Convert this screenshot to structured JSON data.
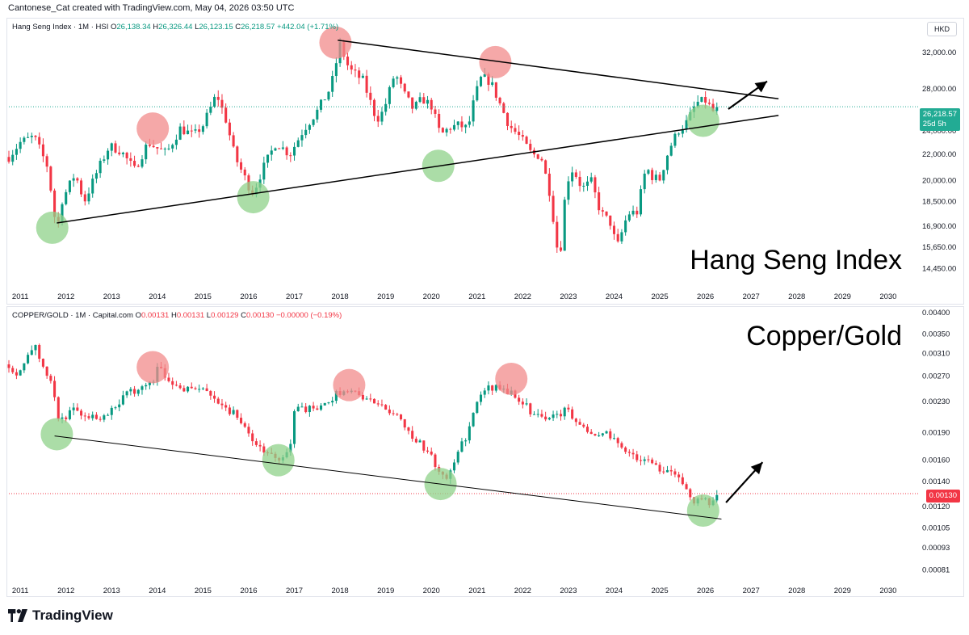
{
  "header": {
    "caption": "Cantonese_Cat created with TradingView.com, May 04, 2026 03:50 UTC"
  },
  "footer": {
    "brand": "TradingView"
  },
  "colors": {
    "up": "#089981",
    "down": "#f23645",
    "green_circle": "#8fd18a",
    "red_circle": "#f28b8b",
    "last_price_line": "#22ab94"
  },
  "chart_data": [
    {
      "type": "candlestick",
      "symbol_line": "Hang Seng Index · 1M · HSI",
      "ohlc": {
        "O": "26,138.34",
        "H": "26,326.44",
        "L": "26,123.15",
        "C": "26,218.57",
        "change": "+442.04 (+1.71%)"
      },
      "big_label": "Hang Seng Index",
      "currency": "HKD",
      "y_ticks": [
        "32,000.00",
        "28,000.00",
        "24,000.00",
        "22,000.00",
        "20,000.00",
        "18,500.00",
        "16,900.00",
        "15,650.00",
        "14,450.00"
      ],
      "y_tick_values": [
        32000,
        28000,
        24000,
        22000,
        20000,
        18500,
        16900,
        15650,
        14450
      ],
      "y_scale": "log",
      "ylim": [
        13600,
        35000
      ],
      "last_price": {
        "label": "26,218.57",
        "sub": "25d 5h",
        "value": 26218.57
      },
      "x_ticks": [
        "2011",
        "2012",
        "2013",
        "2014",
        "2015",
        "2016",
        "2017",
        "2018",
        "2019",
        "2020",
        "2021",
        "2022",
        "2023",
        "2024",
        "2025",
        "2026",
        "2027",
        "2028",
        "2029",
        "2030"
      ],
      "xlim": [
        2010.75,
        2030.55
      ],
      "series": [
        {
          "points": [
            [
              2010.75,
              21800
            ],
            [
              2011.0,
              23000
            ],
            [
              2011.3,
              23500
            ],
            [
              2011.6,
              21000
            ],
            [
              2011.8,
              16500
            ],
            [
              2011.9,
              18500
            ],
            [
              2012.2,
              20500
            ],
            [
              2012.4,
              18500
            ],
            [
              2012.7,
              20800
            ],
            [
              2012.95,
              22700
            ],
            [
              2013.2,
              22300
            ],
            [
              2013.5,
              20800
            ],
            [
              2013.8,
              23000
            ],
            [
              2014.0,
              22500
            ],
            [
              2014.2,
              22100
            ],
            [
              2014.5,
              24200
            ],
            [
              2014.8,
              23600
            ],
            [
              2015.0,
              24500
            ],
            [
              2015.3,
              27500
            ],
            [
              2015.5,
              25000
            ],
            [
              2015.7,
              21800
            ],
            [
              2016.0,
              19600
            ],
            [
              2016.1,
              19100
            ],
            [
              2016.3,
              20800
            ],
            [
              2016.6,
              23000
            ],
            [
              2016.9,
              22000
            ],
            [
              2017.2,
              24100
            ],
            [
              2017.5,
              25800
            ],
            [
              2017.8,
              28200
            ],
            [
              2018.0,
              32900
            ],
            [
              2018.2,
              30100
            ],
            [
              2018.5,
              28900
            ],
            [
              2018.8,
              25000
            ],
            [
              2018.95,
              25800
            ],
            [
              2019.2,
              29700
            ],
            [
              2019.4,
              27500
            ],
            [
              2019.6,
              26000
            ],
            [
              2019.8,
              27000
            ],
            [
              2020.0,
              26300
            ],
            [
              2020.2,
              23600
            ],
            [
              2020.4,
              24300
            ],
            [
              2020.6,
              24500
            ],
            [
              2020.8,
              24200
            ],
            [
              2020.95,
              27200
            ],
            [
              2021.1,
              29300
            ],
            [
              2021.3,
              28700
            ],
            [
              2021.5,
              26500
            ],
            [
              2021.7,
              24500
            ],
            [
              2021.95,
              23400
            ],
            [
              2022.2,
              22000
            ],
            [
              2022.4,
              21900
            ],
            [
              2022.6,
              19000
            ],
            [
              2022.8,
              14700
            ],
            [
              2022.95,
              19800
            ],
            [
              2023.1,
              20900
            ],
            [
              2023.3,
              19400
            ],
            [
              2023.5,
              19900
            ],
            [
              2023.7,
              17800
            ],
            [
              2023.95,
              17000
            ],
            [
              2024.05,
              15500
            ],
            [
              2024.3,
              17700
            ],
            [
              2024.5,
              17800
            ],
            [
              2024.7,
              21000
            ],
            [
              2024.85,
              20200
            ],
            [
              2025.0,
              20100
            ],
            [
              2025.2,
              22400
            ],
            [
              2025.4,
              24000
            ],
            [
              2025.6,
              24800
            ],
            [
              2025.8,
              26600
            ],
            [
              2026.0,
              26800
            ],
            [
              2026.2,
              25600
            ],
            [
              2026.3,
              26219
            ]
          ]
        }
      ],
      "trendlines": [
        {
          "from": [
            2011.8,
            17100
          ],
          "to": [
            2027.6,
            25400
          ]
        },
        {
          "from": [
            2017.95,
            33500
          ],
          "to": [
            2027.6,
            27000
          ]
        }
      ],
      "arrow": {
        "from": [
          2026.5,
          26000
        ],
        "to": [
          2027.35,
          28800
        ]
      },
      "circles": [
        {
          "color": "green",
          "at": [
            2011.7,
            16800
          ]
        },
        {
          "color": "red",
          "at": [
            2013.9,
            24200
          ]
        },
        {
          "color": "green",
          "at": [
            2016.1,
            18800
          ]
        },
        {
          "color": "red",
          "at": [
            2017.9,
            33200
          ]
        },
        {
          "color": "green",
          "at": [
            2020.15,
            21100
          ]
        },
        {
          "color": "red",
          "at": [
            2021.4,
            30900
          ]
        },
        {
          "color": "green",
          "at": [
            2025.95,
            24900
          ]
        }
      ]
    },
    {
      "type": "candlestick",
      "symbol_line": "COPPER/GOLD · 1M · Capital.com",
      "ohlc": {
        "O": "0.00131",
        "H": "0.00131",
        "L": "0.00129",
        "C": "0.00130",
        "change": "−0.00000 (−0.19%)"
      },
      "big_label": "Copper/Gold",
      "y_ticks": [
        "0.00400",
        "0.00350",
        "0.00310",
        "0.00270",
        "0.00230",
        "0.00190",
        "0.00160",
        "0.00140",
        "0.00120",
        "0.00105",
        "0.00093",
        "0.00081"
      ],
      "y_tick_values": [
        0.004,
        0.0035,
        0.0031,
        0.0027,
        0.0023,
        0.0019,
        0.0016,
        0.0014,
        0.0012,
        0.00105,
        0.00093,
        0.00081
      ],
      "y_scale": "log",
      "ylim": [
        0.00076,
        0.0041
      ],
      "last_price": {
        "label": "0.00130",
        "value": 0.0013
      },
      "x_ticks": [
        "2011",
        "2012",
        "2013",
        "2014",
        "2015",
        "2016",
        "2017",
        "2018",
        "2019",
        "2020",
        "2021",
        "2022",
        "2023",
        "2024",
        "2025",
        "2026",
        "2027",
        "2028",
        "2029",
        "2030"
      ],
      "xlim": [
        2010.75,
        2030.55
      ],
      "series": [
        {
          "points": [
            [
              2010.75,
              0.0029
            ],
            [
              2010.9,
              0.0027
            ],
            [
              2011.1,
              0.003
            ],
            [
              2011.3,
              0.0033
            ],
            [
              2011.5,
              0.0028
            ],
            [
              2011.7,
              0.0026
            ],
            [
              2011.85,
              0.002
            ],
            [
              2012.0,
              0.0021
            ],
            [
              2012.2,
              0.0022
            ],
            [
              2012.5,
              0.0021
            ],
            [
              2012.8,
              0.0021
            ],
            [
              2013.0,
              0.0022
            ],
            [
              2013.3,
              0.0024
            ],
            [
              2013.6,
              0.0025
            ],
            [
              2013.9,
              0.0026
            ],
            [
              2014.0,
              0.0029
            ],
            [
              2014.3,
              0.0026
            ],
            [
              2014.6,
              0.0025
            ],
            [
              2014.9,
              0.0025
            ],
            [
              2015.2,
              0.0024
            ],
            [
              2015.5,
              0.0022
            ],
            [
              2015.8,
              0.0021
            ],
            [
              2016.0,
              0.00185
            ],
            [
              2016.3,
              0.0017
            ],
            [
              2016.6,
              0.0016
            ],
            [
              2016.9,
              0.0017
            ],
            [
              2017.0,
              0.0022
            ],
            [
              2017.3,
              0.0022
            ],
            [
              2017.6,
              0.0022
            ],
            [
              2017.9,
              0.0024
            ],
            [
              2018.1,
              0.0025
            ],
            [
              2018.4,
              0.0024
            ],
            [
              2018.7,
              0.0023
            ],
            [
              2019.0,
              0.0022
            ],
            [
              2019.3,
              0.0021
            ],
            [
              2019.6,
              0.00185
            ],
            [
              2019.9,
              0.0017
            ],
            [
              2020.1,
              0.00155
            ],
            [
              2020.3,
              0.0014
            ],
            [
              2020.5,
              0.0016
            ],
            [
              2020.8,
              0.0019
            ],
            [
              2021.0,
              0.0023
            ],
            [
              2021.2,
              0.0025
            ],
            [
              2021.5,
              0.0025
            ],
            [
              2021.8,
              0.0024
            ],
            [
              2022.0,
              0.0023
            ],
            [
              2022.2,
              0.00215
            ],
            [
              2022.4,
              0.0021
            ],
            [
              2022.7,
              0.0021
            ],
            [
              2023.0,
              0.0022
            ],
            [
              2023.2,
              0.002
            ],
            [
              2023.5,
              0.0019
            ],
            [
              2023.8,
              0.0019
            ],
            [
              2024.0,
              0.0018
            ],
            [
              2024.3,
              0.0017
            ],
            [
              2024.6,
              0.0016
            ],
            [
              2024.9,
              0.00155
            ],
            [
              2025.1,
              0.0015
            ],
            [
              2025.3,
              0.0015
            ],
            [
              2025.5,
              0.00135
            ],
            [
              2025.7,
              0.00125
            ],
            [
              2025.9,
              0.00125
            ],
            [
              2026.1,
              0.00122
            ],
            [
              2026.3,
              0.0013
            ]
          ]
        }
      ],
      "trendlines": [
        {
          "from": [
            2011.75,
            0.00186
          ],
          "to": [
            2026.35,
            0.00111
          ]
        }
      ],
      "arrow": {
        "from": [
          2026.45,
          0.00123
        ],
        "to": [
          2027.25,
          0.00158
        ]
      },
      "circles": [
        {
          "color": "green",
          "at": [
            2011.8,
            0.00188
          ]
        },
        {
          "color": "red",
          "at": [
            2013.9,
            0.00285
          ]
        },
        {
          "color": "green",
          "at": [
            2016.65,
            0.0016
          ]
        },
        {
          "color": "red",
          "at": [
            2018.2,
            0.00255
          ]
        },
        {
          "color": "green",
          "at": [
            2020.2,
            0.00138
          ]
        },
        {
          "color": "red",
          "at": [
            2021.75,
            0.00265
          ]
        },
        {
          "color": "green",
          "at": [
            2025.95,
            0.00117
          ]
        }
      ]
    }
  ]
}
